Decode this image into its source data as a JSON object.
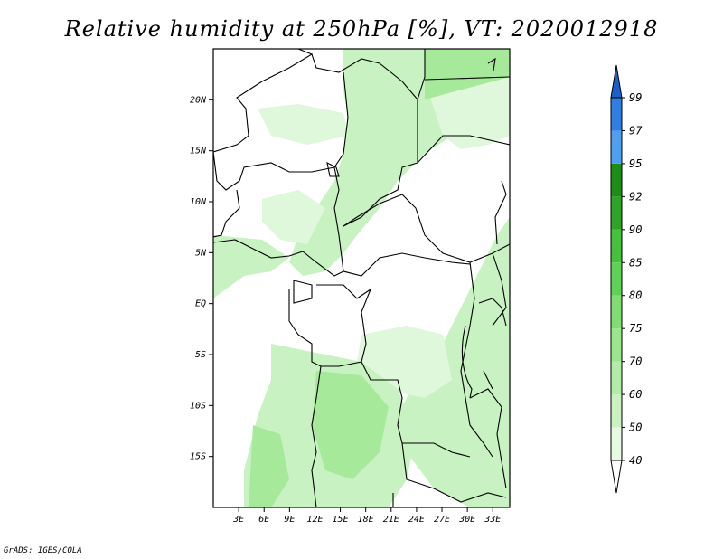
{
  "title": "Relative humidity at 250hPa [%], VT: 2020012918",
  "credit": "GrADS: IGES/COLA",
  "map": {
    "lat_ticks": [
      {
        "label": "20N",
        "lat": 20
      },
      {
        "label": "15N",
        "lat": 15
      },
      {
        "label": "10N",
        "lat": 10
      },
      {
        "label": "5N",
        "lat": 5
      },
      {
        "label": "EQ",
        "lat": 0
      },
      {
        "label": "5S",
        "lat": -5
      },
      {
        "label": "10S",
        "lat": -10
      },
      {
        "label": "15S",
        "lat": -15
      }
    ],
    "lon_ticks": [
      {
        "label": "3E",
        "lon": 3
      },
      {
        "label": "6E",
        "lon": 6
      },
      {
        "label": "9E",
        "lon": 9
      },
      {
        "label": "12E",
        "lon": 12
      },
      {
        "label": "15E",
        "lon": 15
      },
      {
        "label": "18E",
        "lon": 18
      },
      {
        "label": "21E",
        "lon": 21
      },
      {
        "label": "24E",
        "lon": 24
      },
      {
        "label": "27E",
        "lon": 27
      },
      {
        "label": "30E",
        "lon": 30
      },
      {
        "label": "33E",
        "lon": 33
      }
    ],
    "lon_range": [
      0,
      35
    ],
    "lat_range": [
      -20,
      25
    ]
  },
  "colorbar": {
    "levels": [
      {
        "label": "40",
        "color": "#e5fae0"
      },
      {
        "label": "50",
        "color": "#c9f2c0"
      },
      {
        "label": "60",
        "color": "#b2eda7"
      },
      {
        "label": "70",
        "color": "#99e68b"
      },
      {
        "label": "75",
        "color": "#7fde72"
      },
      {
        "label": "80",
        "color": "#5ed257"
      },
      {
        "label": "85",
        "color": "#45c13c"
      },
      {
        "label": "90",
        "color": "#2da428"
      },
      {
        "label": "92",
        "color": "#1c8e18"
      },
      {
        "label": "95",
        "color": "#4f9ff0"
      },
      {
        "label": "97",
        "color": "#2f7fe2"
      },
      {
        "label": "99",
        "color": "#1a60cc"
      }
    ],
    "under_color": "#ffffff",
    "over_color": "#1a60cc"
  },
  "colors": {
    "light_green": "#c6f2bf",
    "mid_green": "#a6e99a",
    "pale_green": "#dff7da"
  }
}
